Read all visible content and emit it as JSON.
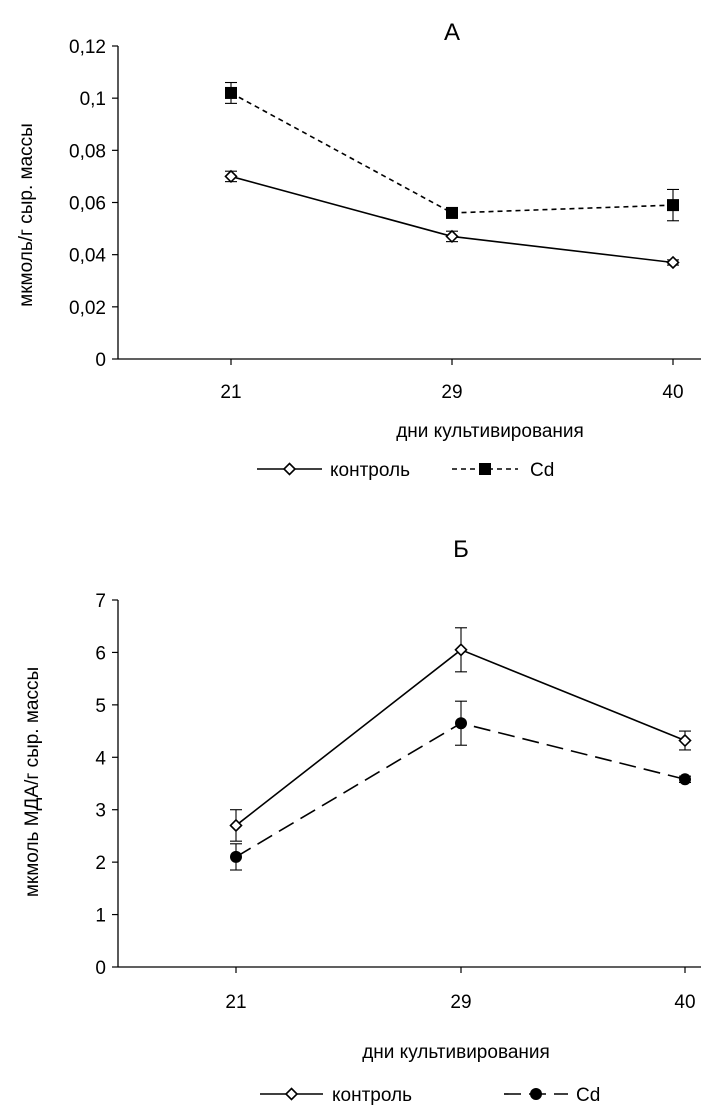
{
  "chart_data": [
    {
      "type": "line",
      "title": "А",
      "xlabel": "дни культивирования",
      "ylabel": "мкмоль/г сыр. массы",
      "categories": [
        "21",
        "29",
        "40"
      ],
      "ylim": [
        0,
        0.12
      ],
      "yticks": [
        "0",
        "0,02",
        "0,04",
        "0,06",
        "0,08",
        "0,1",
        "0,12"
      ],
      "legend_position": "bottom",
      "series": [
        {
          "name": "контроль",
          "values": [
            0.07,
            0.047,
            0.037
          ],
          "errors": [
            0.002,
            0.002,
            0.001
          ],
          "marker": "diamond",
          "line": "solid",
          "color": "#000000"
        },
        {
          "name": "Cd",
          "values": [
            0.102,
            0.056,
            0.059
          ],
          "errors": [
            0.004,
            0.001,
            0.006
          ],
          "marker": "square",
          "line": "dashed",
          "color": "#000000"
        }
      ]
    },
    {
      "type": "line",
      "title": "Б",
      "xlabel": "дни культивирования",
      "ylabel": "мкмоль МДА/г сыр. массы",
      "categories": [
        "21",
        "29",
        "40"
      ],
      "ylim": [
        0,
        7
      ],
      "yticks": [
        "0",
        "1",
        "2",
        "3",
        "4",
        "5",
        "6",
        "7"
      ],
      "legend_position": "bottom",
      "series": [
        {
          "name": "контроль",
          "values": [
            2.7,
            6.05,
            4.32
          ],
          "errors": [
            0.3,
            0.42,
            0.18
          ],
          "marker": "diamond",
          "line": "solid",
          "color": "#000000"
        },
        {
          "name": "Cd",
          "values": [
            2.1,
            4.65,
            3.58
          ],
          "errors": [
            0.25,
            0.42,
            0.06
          ],
          "marker": "circle",
          "line": "long-dash",
          "color": "#000000"
        }
      ]
    }
  ]
}
